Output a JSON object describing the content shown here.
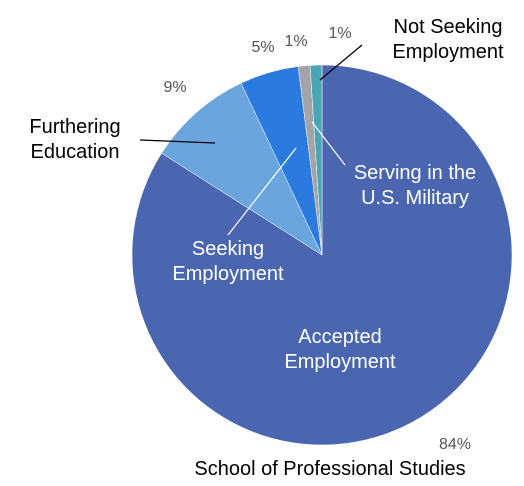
{
  "chart_data": {
    "type": "pie",
    "title": "School of Professional Studies",
    "categories": [
      "Accepted Employment",
      "Furthering Education",
      "Seeking Employment",
      "Serving in the U.S. Military",
      "Not Seeking Employment"
    ],
    "values": [
      84,
      9,
      5,
      1,
      1
    ],
    "value_labels": [
      "84%",
      "9%",
      "5%",
      "1%",
      "1%"
    ],
    "colors": [
      "#4a66b0",
      "#6aa5de",
      "#2a7ae0",
      "#a3a3a8",
      "#4aa6b4"
    ]
  }
}
